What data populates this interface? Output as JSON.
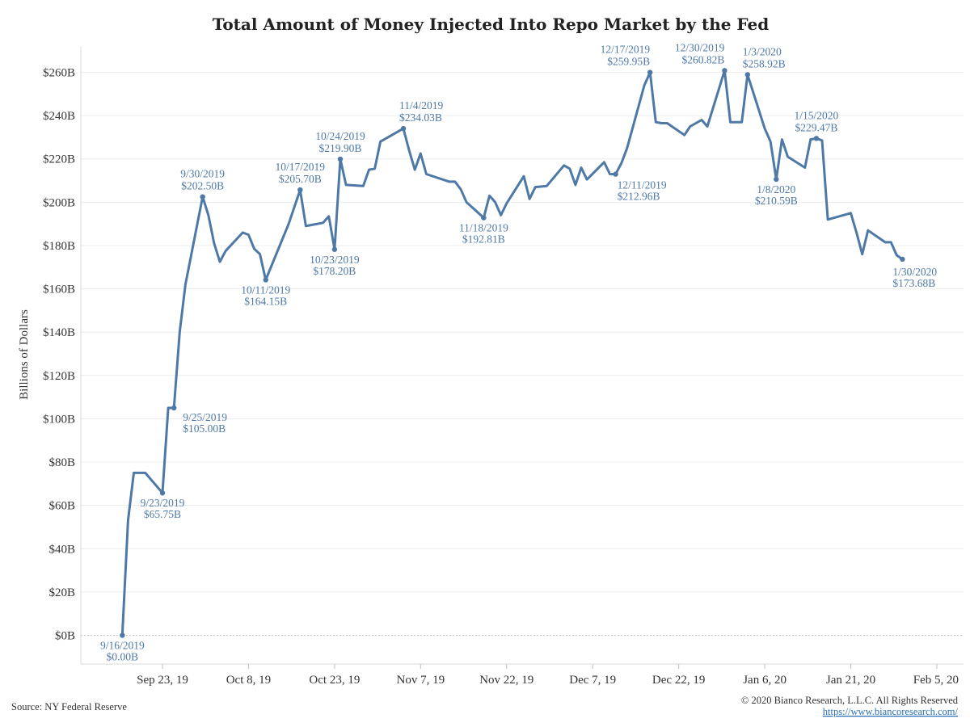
{
  "chart_data": {
    "type": "line",
    "title": "Total Amount of Money Injected Into Repo Market by the Fed",
    "ylabel": "Billions of Dollars",
    "xlabel": "",
    "ylim": [
      0,
      270
    ],
    "grid": true,
    "color": "#4e79a7",
    "y_ticks": [
      {
        "value": 0,
        "label": "$0B"
      },
      {
        "value": 20,
        "label": "$20B"
      },
      {
        "value": 40,
        "label": "$40B"
      },
      {
        "value": 60,
        "label": "$60B"
      },
      {
        "value": 80,
        "label": "$80B"
      },
      {
        "value": 100,
        "label": "$100B"
      },
      {
        "value": 120,
        "label": "$120B"
      },
      {
        "value": 140,
        "label": "$140B"
      },
      {
        "value": 160,
        "label": "$160B"
      },
      {
        "value": 180,
        "label": "$180B"
      },
      {
        "value": 200,
        "label": "$200B"
      },
      {
        "value": 220,
        "label": "$220B"
      },
      {
        "value": 240,
        "label": "$240B"
      },
      {
        "value": 260,
        "label": "$260B"
      }
    ],
    "x_ticks": [
      {
        "date": "2019-09-23",
        "label": "Sep 23, 19"
      },
      {
        "date": "2019-10-08",
        "label": "Oct 8, 19"
      },
      {
        "date": "2019-10-23",
        "label": "Oct 23, 19"
      },
      {
        "date": "2019-11-07",
        "label": "Nov 7, 19"
      },
      {
        "date": "2019-11-22",
        "label": "Nov 22, 19"
      },
      {
        "date": "2019-12-07",
        "label": "Dec 7, 19"
      },
      {
        "date": "2019-12-22",
        "label": "Dec 22, 19"
      },
      {
        "date": "2020-01-06",
        "label": "Jan 6, 20"
      },
      {
        "date": "2020-01-21",
        "label": "Jan 21, 20"
      },
      {
        "date": "2020-02-05",
        "label": "Feb 5, 20"
      }
    ],
    "x_domain": [
      "2019-09-09",
      "2020-02-05"
    ],
    "series": [
      {
        "values": [
          {
            "x": "2019-09-16",
            "y": 0
          },
          {
            "x": "2019-09-17",
            "y": 53
          },
          {
            "x": "2019-09-18",
            "y": 75
          },
          {
            "x": "2019-09-19",
            "y": 75
          },
          {
            "x": "2019-09-20",
            "y": 75
          },
          {
            "x": "2019-09-23",
            "y": 65.75
          },
          {
            "x": "2019-09-24",
            "y": 105
          },
          {
            "x": "2019-09-25",
            "y": 105
          },
          {
            "x": "2019-09-26",
            "y": 140
          },
          {
            "x": "2019-09-27",
            "y": 162
          },
          {
            "x": "2019-09-30",
            "y": 202.5
          },
          {
            "x": "2019-10-01",
            "y": 194
          },
          {
            "x": "2019-10-02",
            "y": 181
          },
          {
            "x": "2019-10-03",
            "y": 172.5
          },
          {
            "x": "2019-10-04",
            "y": 177.5
          },
          {
            "x": "2019-10-07",
            "y": 186
          },
          {
            "x": "2019-10-08",
            "y": 185
          },
          {
            "x": "2019-10-09",
            "y": 178.5
          },
          {
            "x": "2019-10-10",
            "y": 176
          },
          {
            "x": "2019-10-11",
            "y": 164.15
          },
          {
            "x": "2019-10-15",
            "y": 190
          },
          {
            "x": "2019-10-17",
            "y": 205.7
          },
          {
            "x": "2019-10-18",
            "y": 189
          },
          {
            "x": "2019-10-21",
            "y": 190.5
          },
          {
            "x": "2019-10-22",
            "y": 193.5
          },
          {
            "x": "2019-10-23",
            "y": 178.2
          },
          {
            "x": "2019-10-24",
            "y": 219.9
          },
          {
            "x": "2019-10-25",
            "y": 208
          },
          {
            "x": "2019-10-28",
            "y": 207.5
          },
          {
            "x": "2019-10-29",
            "y": 215
          },
          {
            "x": "2019-10-30",
            "y": 215.5
          },
          {
            "x": "2019-10-31",
            "y": 228
          },
          {
            "x": "2019-11-04",
            "y": 234.03
          },
          {
            "x": "2019-11-05",
            "y": 224
          },
          {
            "x": "2019-11-06",
            "y": 215
          },
          {
            "x": "2019-11-07",
            "y": 222.5
          },
          {
            "x": "2019-11-08",
            "y": 213
          },
          {
            "x": "2019-11-12",
            "y": 209.5
          },
          {
            "x": "2019-11-13",
            "y": 209.5
          },
          {
            "x": "2019-11-14",
            "y": 206
          },
          {
            "x": "2019-11-15",
            "y": 200
          },
          {
            "x": "2019-11-18",
            "y": 192.81
          },
          {
            "x": "2019-11-19",
            "y": 203
          },
          {
            "x": "2019-11-20",
            "y": 200
          },
          {
            "x": "2019-11-21",
            "y": 194
          },
          {
            "x": "2019-11-22",
            "y": 199.5
          },
          {
            "x": "2019-11-25",
            "y": 212
          },
          {
            "x": "2019-11-26",
            "y": 201.5
          },
          {
            "x": "2019-11-27",
            "y": 207
          },
          {
            "x": "2019-11-29",
            "y": 207.5
          },
          {
            "x": "2019-12-02",
            "y": 217
          },
          {
            "x": "2019-12-03",
            "y": 215.5
          },
          {
            "x": "2019-12-04",
            "y": 208
          },
          {
            "x": "2019-12-05",
            "y": 216
          },
          {
            "x": "2019-12-06",
            "y": 210.5
          },
          {
            "x": "2019-12-09",
            "y": 218.5
          },
          {
            "x": "2019-12-10",
            "y": 213
          },
          {
            "x": "2019-12-11",
            "y": 212.96
          },
          {
            "x": "2019-12-12",
            "y": 218
          },
          {
            "x": "2019-12-13",
            "y": 225
          },
          {
            "x": "2019-12-16",
            "y": 254
          },
          {
            "x": "2019-12-17",
            "y": 259.95
          },
          {
            "x": "2019-12-18",
            "y": 237
          },
          {
            "x": "2019-12-19",
            "y": 236.5
          },
          {
            "x": "2019-12-20",
            "y": 236.5
          },
          {
            "x": "2019-12-23",
            "y": 231
          },
          {
            "x": "2019-12-24",
            "y": 235
          },
          {
            "x": "2019-12-26",
            "y": 238
          },
          {
            "x": "2019-12-27",
            "y": 235
          },
          {
            "x": "2019-12-30",
            "y": 260.82
          },
          {
            "x": "2019-12-31",
            "y": 237
          },
          {
            "x": "2020-01-02",
            "y": 237
          },
          {
            "x": "2020-01-03",
            "y": 258.92
          },
          {
            "x": "2020-01-06",
            "y": 234
          },
          {
            "x": "2020-01-07",
            "y": 228
          },
          {
            "x": "2020-01-08",
            "y": 210.59
          },
          {
            "x": "2020-01-09",
            "y": 229
          },
          {
            "x": "2020-01-10",
            "y": 221
          },
          {
            "x": "2020-01-13",
            "y": 216
          },
          {
            "x": "2020-01-14",
            "y": 229
          },
          {
            "x": "2020-01-15",
            "y": 229.47
          },
          {
            "x": "2020-01-16",
            "y": 228.5
          },
          {
            "x": "2020-01-17",
            "y": 192
          },
          {
            "x": "2020-01-21",
            "y": 195
          },
          {
            "x": "2020-01-22",
            "y": 186
          },
          {
            "x": "2020-01-23",
            "y": 176
          },
          {
            "x": "2020-01-24",
            "y": 187
          },
          {
            "x": "2020-01-27",
            "y": 181.5
          },
          {
            "x": "2020-01-28",
            "y": 181.5
          },
          {
            "x": "2020-01-29",
            "y": 175.5
          },
          {
            "x": "2020-01-30",
            "y": 173.68
          }
        ]
      }
    ],
    "annotations": [
      {
        "x": "2019-09-16",
        "y": 0,
        "date": "9/16/2019",
        "value": "$0.00B",
        "pos": "below"
      },
      {
        "x": "2019-09-23",
        "y": 65.75,
        "date": "9/23/2019",
        "value": "$65.75B",
        "pos": "below"
      },
      {
        "x": "2019-09-25",
        "y": 105,
        "date": "9/25/2019",
        "value": "$105.00B",
        "pos": "below-right"
      },
      {
        "x": "2019-09-30",
        "y": 202.5,
        "date": "9/30/2019",
        "value": "$202.50B",
        "pos": "above"
      },
      {
        "x": "2019-10-11",
        "y": 164.15,
        "date": "10/11/2019",
        "value": "$164.15B",
        "pos": "below"
      },
      {
        "x": "2019-10-17",
        "y": 205.7,
        "date": "10/17/2019",
        "value": "$205.70B",
        "pos": "above"
      },
      {
        "x": "2019-10-23",
        "y": 178.2,
        "date": "10/23/2019",
        "value": "$178.20B",
        "pos": "below"
      },
      {
        "x": "2019-10-24",
        "y": 219.9,
        "date": "10/24/2019",
        "value": "$219.90B",
        "pos": "above"
      },
      {
        "x": "2019-11-04",
        "y": 234.03,
        "date": "11/4/2019",
        "value": "$234.03B",
        "pos": "above-right"
      },
      {
        "x": "2019-11-18",
        "y": 192.81,
        "date": "11/18/2019",
        "value": "$192.81B",
        "pos": "below"
      },
      {
        "x": "2019-12-11",
        "y": 212.96,
        "date": "12/11/2019",
        "value": "$212.96B",
        "pos": "below-right"
      },
      {
        "x": "2019-12-17",
        "y": 259.95,
        "date": "12/17/2019",
        "value": "$259.95B",
        "pos": "above-left"
      },
      {
        "x": "2019-12-30",
        "y": 260.82,
        "date": "12/30/2019",
        "value": "$260.82B",
        "pos": "above-left"
      },
      {
        "x": "2020-01-03",
        "y": 258.92,
        "date": "1/3/2020",
        "value": "$258.92B",
        "pos": "above-right"
      },
      {
        "x": "2020-01-08",
        "y": 210.59,
        "date": "1/8/2020",
        "value": "$210.59B",
        "pos": "below"
      },
      {
        "x": "2020-01-15",
        "y": 229.47,
        "date": "1/15/2020",
        "value": "$229.47B",
        "pos": "above"
      },
      {
        "x": "2020-01-30",
        "y": 173.68,
        "date": "1/30/2020",
        "value": "$173.68B",
        "pos": "below-right"
      }
    ]
  },
  "footer": {
    "source": "Source: NY Federal Reserve",
    "copyright": "© 2020 Bianco Research, L.L.C. All Rights Reserved",
    "link": "https://www.biancoresearch.com/"
  }
}
